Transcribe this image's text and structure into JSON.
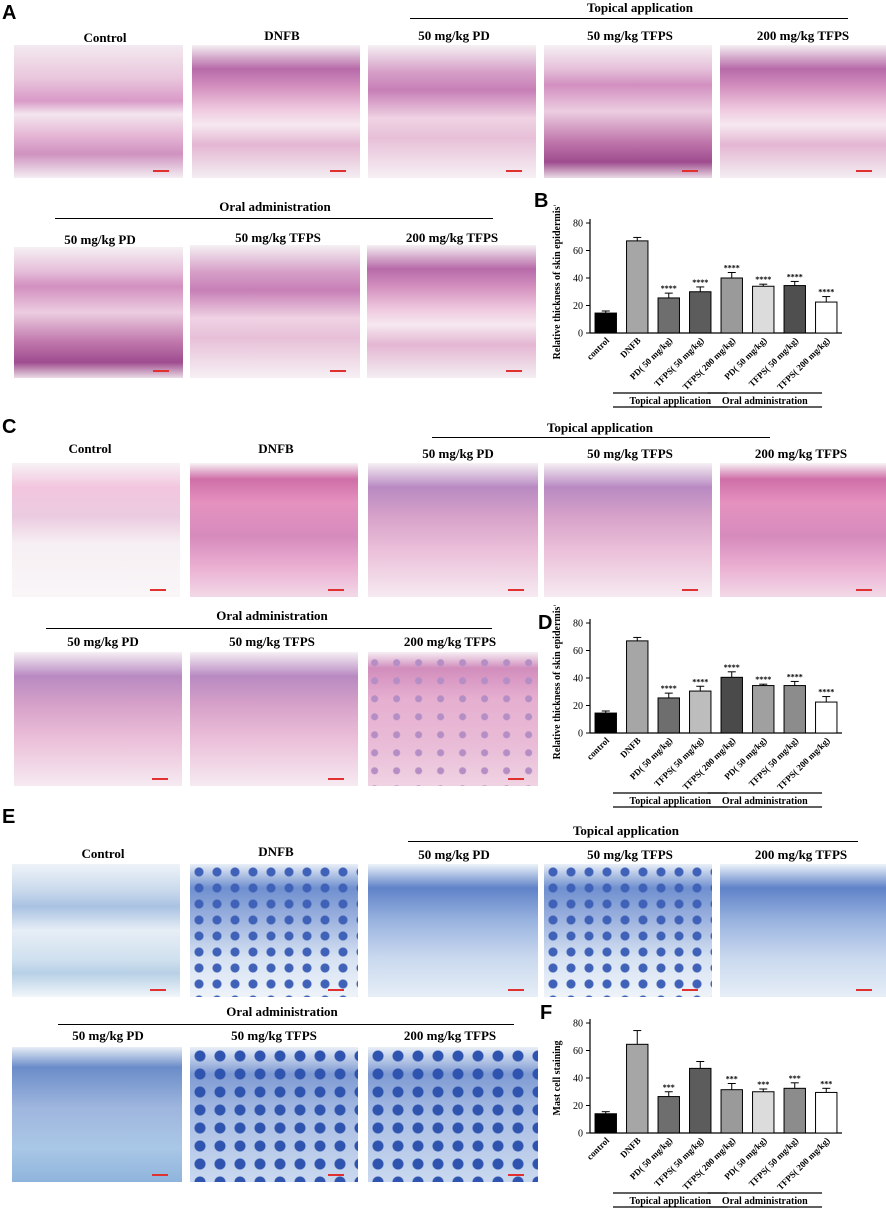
{
  "panels": {
    "A": {
      "letter": "A",
      "topical_group": "Topical application",
      "oral_group": "Oral administration",
      "top_labels": [
        "Control",
        "DNFB",
        "50 mg/kg PD",
        "50 mg/kg TFPS",
        "200 mg/kg TFPS"
      ],
      "bottom_labels": [
        "50 mg/kg PD",
        "50 mg/kg TFPS",
        "200 mg/kg TFPS"
      ]
    },
    "C": {
      "letter": "C",
      "topical_group": "Topical application",
      "oral_group": "Oral administration",
      "top_labels": [
        "Control",
        "DNFB",
        "50 mg/kg PD",
        "50 mg/kg TFPS",
        "200 mg/kg TFPS"
      ],
      "bottom_labels": [
        "50 mg/kg PD",
        "50 mg/kg TFPS",
        "200 mg/kg TFPS"
      ]
    },
    "E": {
      "letter": "E",
      "topical_group": "Topical application",
      "oral_group": "Oral administration",
      "top_labels": [
        "Control",
        "DNFB",
        "50 mg/kg PD",
        "50 mg/kg TFPS",
        "200 mg/kg TFPS"
      ],
      "bottom_labels": [
        "50 mg/kg PD",
        "50 mg/kg TFPS",
        "200 mg/kg TFPS"
      ]
    }
  },
  "chart_data": [
    {
      "panel": "B",
      "type": "bar",
      "ylabel": "Relative thickness of skin epidermis%",
      "ylim": [
        0,
        80
      ],
      "yticks": [
        0,
        20,
        40,
        60,
        80
      ],
      "categories": [
        "control",
        "DNFB",
        "PD( 50 mg/kg)",
        "TFPS( 50 mg/kg)",
        "TFPS( 200 mg/kg)",
        "PD( 50 mg/kg)",
        "TFPS( 50 mg/kg)",
        "TFPS( 200 mg/kg)"
      ],
      "values": [
        14.5,
        67,
        25.5,
        30,
        40,
        34,
        34.5,
        22.5
      ],
      "errors": [
        1.5,
        2.5,
        3.5,
        3.5,
        4,
        1.5,
        3,
        4
      ],
      "significance": [
        "",
        "",
        "****",
        "****",
        "****",
        "****",
        "****",
        "****"
      ],
      "fills": [
        "#000000",
        "#a6a6a6",
        "#6e6e6e",
        "#5c5c5c",
        "#9a9a9a",
        "#dcdcdc",
        "#4f4f4f",
        "#ffffff"
      ],
      "groups": [
        {
          "label": "Topical application",
          "from": 2,
          "to": 4
        },
        {
          "label": "Oral administration",
          "from": 5,
          "to": 7
        }
      ]
    },
    {
      "panel": "D",
      "type": "bar",
      "ylabel": "Relative thickness of skin epidermis%",
      "ylim": [
        0,
        80
      ],
      "yticks": [
        0,
        20,
        40,
        60,
        80
      ],
      "categories": [
        "control",
        "DNFB",
        "PD( 50 mg/kg)",
        "TFPS( 50 mg/kg)",
        "TFPS( 200 mg/kg)",
        "PD( 50 mg/kg)",
        "TFPS( 50 mg/kg)",
        "TFPS( 200 mg/kg)"
      ],
      "values": [
        14.5,
        67,
        25.5,
        30.5,
        40.5,
        34.5,
        34.5,
        22.5
      ],
      "errors": [
        1.5,
        2.5,
        3.5,
        3.5,
        4,
        1,
        3,
        4
      ],
      "significance": [
        "",
        "",
        "****",
        "****",
        "****",
        "****",
        "****",
        "****"
      ],
      "fills": [
        "#000000",
        "#a6a6a6",
        "#6e6e6e",
        "#bdbdbd",
        "#4a4a4a",
        "#a0a0a0",
        "#8c8c8c",
        "#ffffff"
      ],
      "groups": [
        {
          "label": "Topical application",
          "from": 2,
          "to": 4
        },
        {
          "label": "Oral administration",
          "from": 5,
          "to": 7
        }
      ]
    },
    {
      "panel": "F",
      "type": "bar",
      "ylabel": "Mast cell staining",
      "ylim": [
        0,
        80
      ],
      "yticks": [
        0,
        20,
        40,
        60,
        80
      ],
      "categories": [
        "control",
        "DNFB",
        "PD( 50 mg/kg)",
        "TFPS( 50 mg/kg)",
        "TFPS( 200 mg/kg)",
        "PD( 50 mg/kg)",
        "TFPS( 50 mg/kg)",
        "TFPS( 200 mg/kg)"
      ],
      "values": [
        14,
        64.5,
        26.5,
        47,
        31.5,
        30,
        32.5,
        29.5
      ],
      "errors": [
        1.5,
        10,
        3.5,
        5,
        4.5,
        2,
        4,
        3
      ],
      "significance": [
        "",
        "",
        "***",
        "",
        "***",
        "***",
        "***",
        "***"
      ],
      "fills": [
        "#000000",
        "#a6a6a6",
        "#6e6e6e",
        "#5c5c5c",
        "#9a9a9a",
        "#dcdcdc",
        "#8c8c8c",
        "#ffffff"
      ],
      "groups": [
        {
          "label": "Topical application",
          "from": 2,
          "to": 4
        },
        {
          "label": "Oral administration",
          "from": 5,
          "to": 7
        }
      ]
    }
  ],
  "chart_letters": [
    "B",
    "D",
    "F"
  ]
}
